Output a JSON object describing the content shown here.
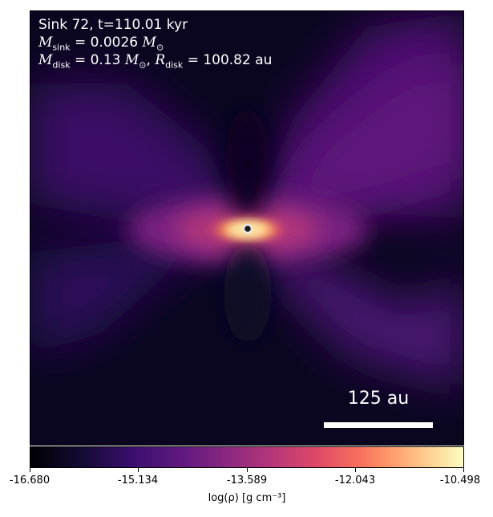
{
  "header": {
    "line1": "Sink 72, t=110.01 kyr",
    "sink_mass_value": "= 0.0026",
    "disk_mass_value": "= 0.13",
    "disk_radius_value": "= 100.82 au"
  },
  "scale_bar": {
    "label": "125 au"
  },
  "colorbar": {
    "ticks": [
      "-16.680",
      "-15.134",
      "-13.589",
      "-12.043",
      "-10.498"
    ],
    "label": "log(ρ) [g cm⁻³]"
  },
  "colors": {
    "background": "#07051a",
    "hot": "#fcfdbf",
    "mid": "#b73779",
    "cool": "#3b0f70"
  }
}
